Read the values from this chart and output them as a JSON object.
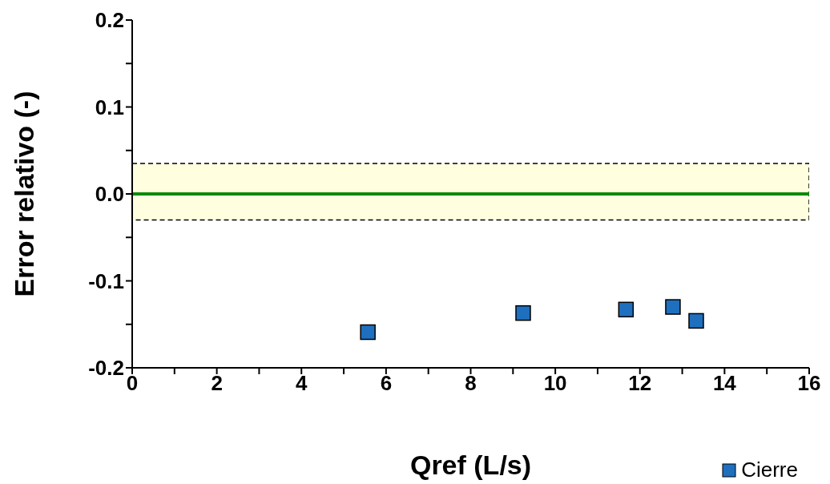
{
  "chart_data": {
    "type": "scatter",
    "xlabel": "Qref (L/s)",
    "ylabel": "Error relativo (-)",
    "series": [
      {
        "name": "Cierre",
        "color": "#1f6fbf",
        "x": [
          5.57,
          9.24,
          11.67,
          12.78,
          13.33
        ],
        "values": [
          -0.159,
          -0.137,
          -0.133,
          -0.13,
          -0.146
        ]
      }
    ],
    "marker": "square",
    "legend": "bottom right",
    "grid": false,
    "xlim": [
      0,
      16
    ],
    "ylim": [
      -0.2,
      0.2
    ],
    "xticks": [
      0,
      {
        "value": 1,
        "label": null
      },
      2,
      {
        "value": 3,
        "label": null
      },
      4,
      {
        "value": 5,
        "label": null
      },
      6,
      {
        "value": 7,
        "label": null
      },
      8,
      {
        "value": 9,
        "label": null
      },
      10,
      {
        "value": 11,
        "label": null
      },
      12,
      {
        "value": 13,
        "label": null
      },
      14,
      {
        "value": 15,
        "label": null
      },
      16
    ],
    "yticks": [
      -0.2,
      {
        "value": -0.15,
        "label": null
      },
      -0.1,
      {
        "value": -0.05,
        "label": null
      },
      {
        "value": 0,
        "label": "0.0"
      },
      {
        "value": 0.05,
        "label": null
      },
      0.1,
      {
        "value": 0.15,
        "label": null
      },
      0.2
    ],
    "bands": [
      {
        "axis": "y",
        "from": -0.03,
        "to": 0.035,
        "color": "#ffffe0"
      }
    ],
    "ref_lines": [
      {
        "axis": "y",
        "value": 0,
        "color": "#0a8a0a",
        "line_style": "solid"
      }
    ]
  }
}
